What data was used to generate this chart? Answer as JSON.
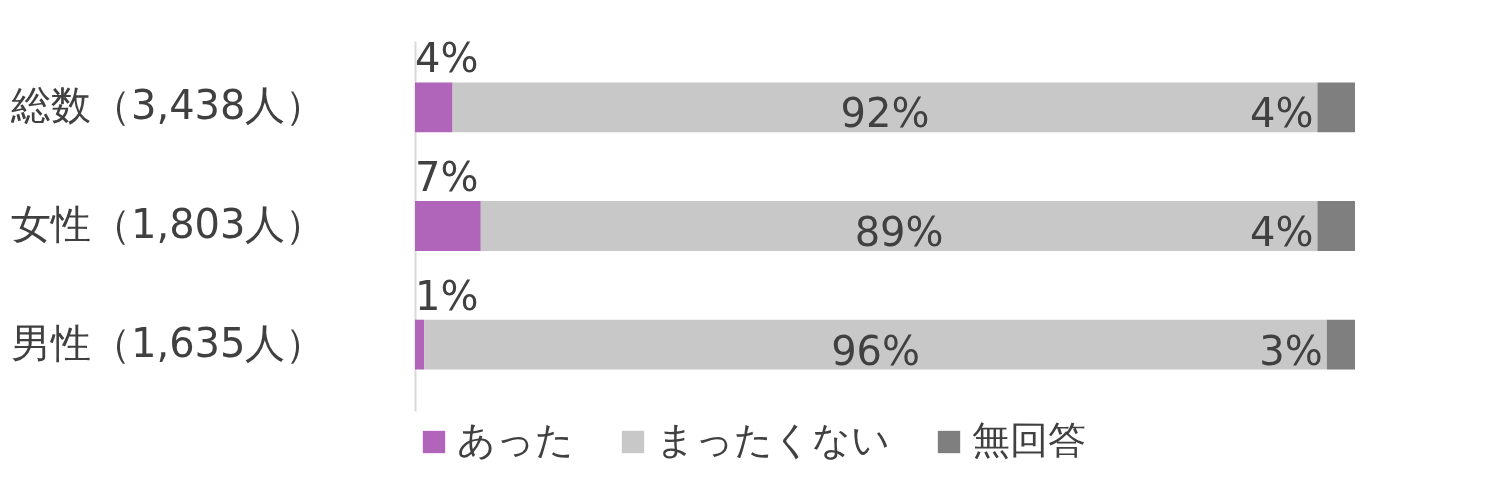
{
  "chart_data": {
    "type": "bar",
    "orientation": "horizontal",
    "stacked": true,
    "categories": [
      "総数（3,438人）",
      "女性（1,803人）",
      "男性（1,635人）"
    ],
    "xlim": [
      0,
      100
    ],
    "tick_labels": "y",
    "legend": "bottom",
    "series": [
      {
        "name": "あった",
        "color": "#b065bb",
        "values": [
          4,
          7,
          1
        ],
        "value_labels": [
          "4%",
          "7%",
          "1%"
        ]
      },
      {
        "name": "まったくない",
        "color": "#c8c8c8",
        "values": [
          92,
          89,
          96
        ],
        "value_labels": [
          "92%",
          "89%",
          "96%"
        ]
      },
      {
        "name": "無回答",
        "color": "#7f7f7f",
        "values": [
          4,
          4,
          3
        ],
        "value_labels": [
          "4%",
          "4%",
          "3%"
        ]
      }
    ]
  }
}
